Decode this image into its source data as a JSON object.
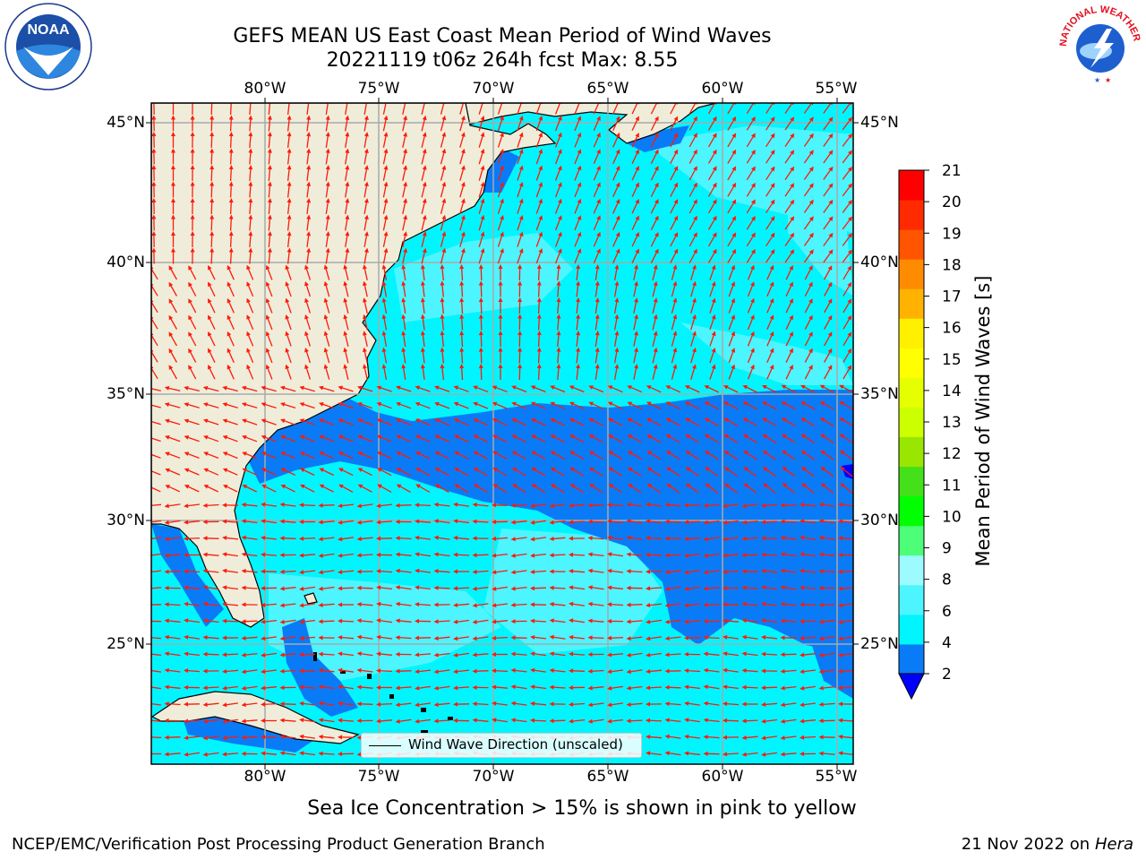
{
  "header": {
    "title_line1": "GEFS MEAN US East Coast Mean Period of Wind Waves",
    "title_line2": "20221119 t06z 264h fcst   Max: 8.55"
  },
  "logos": {
    "noaa": {
      "text": "NOAA",
      "ring_text": "NATIONAL OCEANIC AND ATMOSPHERIC ADMINISTRATION · U.S. DEPARTMENT OF COMMERCE"
    },
    "nws": {
      "ring_text": "NATIONAL WEATHER SERVICE"
    }
  },
  "map": {
    "x_ticks": [
      "80°W",
      "75°W",
      "70°W",
      "65°W",
      "60°W",
      "55°W"
    ],
    "y_ticks": [
      "45°N",
      "40°N",
      "35°N",
      "30°N",
      "25°N"
    ],
    "land_color": "#efedda",
    "ocean_cyan": "#00f5ff",
    "ocean_light": "#4cf5ff",
    "ocean_blue": "#0a7bf6",
    "arrow_color": "#ff1a0a",
    "grid_color": "#a9a9a9"
  },
  "legend": {
    "label": "Wind Wave Direction (unscaled)"
  },
  "colorbar": {
    "label": "Mean Period of Wind Waves [s]",
    "ticks": [
      "21",
      "20",
      "19",
      "18",
      "17",
      "16",
      "15",
      "14",
      "13",
      "12",
      "11",
      "10",
      "9",
      "8",
      "6",
      "4",
      "2"
    ],
    "colors": [
      "#0a7bf6",
      "#00f5ff",
      "#4cf5ff",
      "#9cfbff",
      "#4dff78",
      "#00ff00",
      "#44e01a",
      "#99e600",
      "#ccff00",
      "#e6ff00",
      "#ffff00",
      "#fff000",
      "#ffb300",
      "#ff8c00",
      "#ff5500",
      "#ff2a00",
      "#ff0000"
    ],
    "under_color": "#0000ff"
  },
  "footer": {
    "sea_ice_note": "Sea Ice Concentration > 15% is shown in pink to yellow",
    "credit": "NCEP/EMC/Verification Post Processing Product Generation Branch",
    "date": "21 Nov 2022 on",
    "machine": "Hera"
  }
}
